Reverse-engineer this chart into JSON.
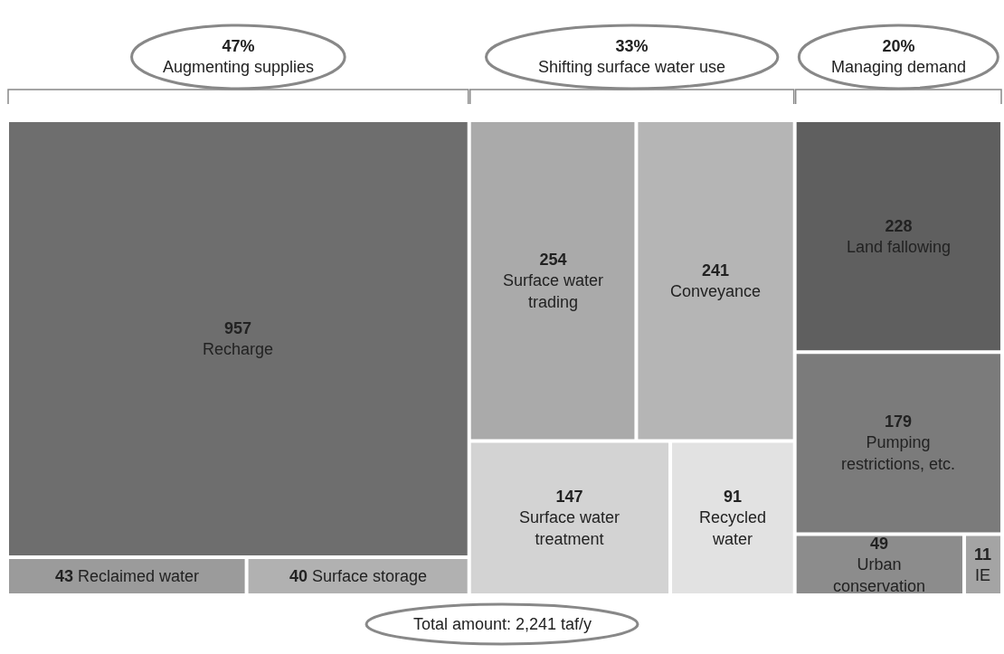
{
  "chart_data": {
    "type": "other",
    "data_labels": true,
    "categories": [
      "Recharge",
      "Reclaimed water",
      "Surface storage",
      "Surface water trading",
      "Conveyance",
      "Surface water treatment",
      "Recycled water",
      "Land fallowing",
      "Pumping restrictions, etc.",
      "Urban conservation",
      "IE"
    ],
    "series": [
      {
        "name": "Augmenting supplies",
        "values": [
          957,
          43,
          40,
          null,
          null,
          null,
          null,
          null,
          null,
          null,
          null
        ],
        "colors": [
          "#6e6e6e",
          "#9b9b9b",
          "#b1b1b1",
          null,
          null,
          null,
          null,
          null,
          null,
          null,
          null
        ]
      },
      {
        "name": "Shifting surface water use",
        "values": [
          null,
          null,
          null,
          254,
          241,
          147,
          91,
          null,
          null,
          null,
          null
        ],
        "colors": [
          null,
          null,
          null,
          "#aaaaaa",
          "#b5b5b5",
          "#d3d3d3",
          "#e2e2e2",
          null,
          null,
          null,
          null
        ]
      },
      {
        "name": "Managing demand",
        "values": [
          null,
          null,
          null,
          null,
          null,
          null,
          null,
          228,
          179,
          49,
          11
        ],
        "colors": [
          null,
          null,
          null,
          null,
          null,
          null,
          null,
          "#5f5f5f",
          "#7b7b7b",
          "#8c8c8c",
          "#a4a4a4"
        ]
      }
    ],
    "annotations": [
      "47%",
      "33%",
      "20%",
      "Total amount: 2,241 taf/y"
    ]
  }
}
